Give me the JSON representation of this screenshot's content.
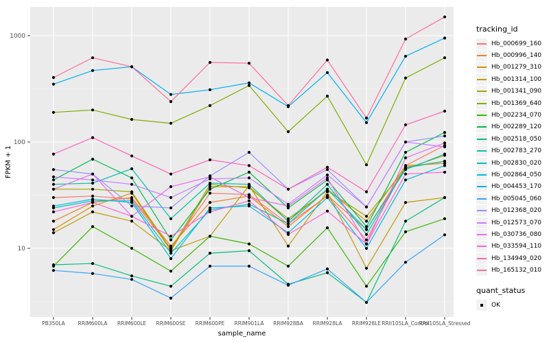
{
  "chart_data": {
    "type": "line",
    "title": "",
    "xlabel": "sample_name",
    "ylabel": "FPKM + 1",
    "yscale": "log10",
    "ylim": [
      2.26,
      1866
    ],
    "y_ticks": [
      10,
      100,
      1000
    ],
    "y_minor_ticks": [
      3.162,
      31.62,
      316.2
    ],
    "grid": "on",
    "panel_bg": "#EBEBEB",
    "grid_color": "#FFFFFF",
    "tick_label_color": "#4D4D4D",
    "point_color": "#000000",
    "legend_position": "right",
    "legend_title": "tracking_id",
    "quant_legend": {
      "title": "quant_status",
      "items": [
        "OK"
      ]
    },
    "categories": [
      "PB350LA",
      "RRIM600LA",
      "RRIM600LE",
      "RRIM600SE",
      "RRIM600PE",
      "RRIM901LA",
      "RRIM928BA",
      "RRIM928LA",
      "RRIM928LE",
      "RRII105LA_Control",
      "RRII105LA_Stressed"
    ],
    "series": [
      {
        "name": "Hb_000699_160",
        "color": "#F8766D",
        "values": [
          30,
          31,
          29,
          10,
          33,
          32,
          17,
          31,
          12,
          60,
          93
        ]
      },
      {
        "name": "Hb_000996_140",
        "color": "#EA8331",
        "values": [
          18,
          27,
          30,
          10.5,
          27,
          31,
          16,
          31.5,
          15,
          58,
          66
        ]
      },
      {
        "name": "Hb_001279_310",
        "color": "#D89000",
        "values": [
          15,
          25,
          33,
          9.5,
          38,
          38,
          18,
          36,
          18,
          60,
          63
        ]
      },
      {
        "name": "Hb_001314_100",
        "color": "#C09B00",
        "values": [
          14,
          22,
          18,
          9.5,
          13,
          39,
          10.5,
          34,
          6.5,
          27,
          30
        ]
      },
      {
        "name": "Hb_001341_090",
        "color": "#A3A500",
        "values": [
          36,
          36,
          34,
          9.8,
          40,
          37,
          19,
          35,
          20,
          56,
          75
        ]
      },
      {
        "name": "Hb_001369_640",
        "color": "#7CAE00",
        "values": [
          190,
          200,
          163,
          150,
          220,
          340,
          125,
          270,
          61,
          400,
          620
        ]
      },
      {
        "name": "Hb_002234_070",
        "color": "#39B600",
        "values": [
          6.8,
          16,
          10,
          6.1,
          13,
          11,
          6.8,
          15.6,
          4.4,
          14.3,
          19
        ]
      },
      {
        "name": "Hb_002289_120",
        "color": "#00BB4E",
        "values": [
          44,
          69,
          46,
          12,
          36,
          52,
          24,
          44,
          16,
          80,
          123
        ]
      },
      {
        "name": "Hb_002518_050",
        "color": "#00BF7D",
        "values": [
          7,
          7.2,
          5.5,
          4.4,
          9,
          9.5,
          4.6,
          5.9,
          3.1,
          18,
          30
        ]
      },
      {
        "name": "Hb_002783_270",
        "color": "#00C1A3",
        "values": [
          40,
          41,
          56,
          19,
          41,
          40,
          18,
          40,
          13.5,
          57,
          66
        ]
      },
      {
        "name": "Hb_002830_020",
        "color": "#00BFC4",
        "values": [
          24,
          28,
          28,
          9,
          23,
          26,
          17,
          36,
          15,
          55,
          77
        ]
      },
      {
        "name": "Hb_002864_050",
        "color": "#00BAE0",
        "values": [
          25,
          29,
          27,
          8,
          24,
          25,
          14,
          30,
          10,
          44,
          60
        ]
      },
      {
        "name": "Hb_004453_170",
        "color": "#00B0F6",
        "values": [
          350,
          470,
          510,
          280,
          310,
          360,
          215,
          450,
          152,
          640,
          950
        ]
      },
      {
        "name": "Hb_005045_060",
        "color": "#35A2FF",
        "values": [
          6.2,
          5.8,
          5.1,
          3.4,
          6.8,
          6.8,
          4.5,
          6.4,
          3.1,
          7.4,
          13.4
        ]
      },
      {
        "name": "Hb_012368_020",
        "color": "#9590FF",
        "values": [
          55,
          50,
          25,
          24,
          48,
          80,
          36,
          55,
          24.5,
          100,
          114
        ]
      },
      {
        "name": "Hb_012573_070",
        "color": "#C77CFF",
        "values": [
          47,
          44,
          40,
          30,
          45,
          46,
          26,
          49,
          24.5,
          100,
          90
        ]
      },
      {
        "name": "Hb_030736_080",
        "color": "#E76BF3",
        "values": [
          36,
          50,
          20,
          38,
          47,
          30,
          25,
          46,
          11,
          71,
          98
        ]
      },
      {
        "name": "Hb_033594_110",
        "color": "#FA62DB",
        "values": [
          22,
          27,
          20,
          13,
          22,
          28,
          13.5,
          22.4,
          11,
          50,
          52
        ]
      },
      {
        "name": "Hb_134949_020",
        "color": "#FF62BC",
        "values": [
          77,
          110,
          74,
          50,
          68,
          60,
          36,
          58,
          34,
          145,
          195
        ]
      },
      {
        "name": "Hb_165132_010",
        "color": "#FF6A98",
        "values": [
          404,
          620,
          510,
          240,
          560,
          550,
          220,
          590,
          168,
          930,
          1500
        ]
      }
    ]
  }
}
